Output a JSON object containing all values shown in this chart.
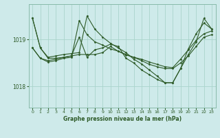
{
  "title": "Graphe pression niveau de la mer (hPa)",
  "bg_color": "#ceeaea",
  "grid_color": "#aad4cc",
  "line_color": "#2d5a27",
  "yticks": [
    1018,
    1019
  ],
  "ylim": [
    1017.55,
    1019.75
  ],
  "xlim": [
    -0.5,
    23.5
  ],
  "xticks": [
    0,
    1,
    2,
    3,
    4,
    5,
    6,
    7,
    8,
    9,
    10,
    11,
    12,
    13,
    14,
    15,
    16,
    17,
    18,
    19,
    20,
    21,
    22,
    23
  ],
  "series": [
    [
      1019.45,
      1018.82,
      1018.62,
      1018.65,
      1018.68,
      1018.7,
      1018.72,
      1019.5,
      1019.22,
      1019.05,
      1018.92,
      1018.82,
      1018.72,
      1018.58,
      1018.48,
      1018.35,
      1018.22,
      1018.08,
      1018.08,
      1018.38,
      1018.68,
      1018.95,
      1019.45,
      1019.22
    ],
    [
      1019.45,
      1018.82,
      1018.6,
      1018.6,
      1018.62,
      1018.65,
      1019.05,
      1018.62,
      1018.78,
      1018.82,
      1018.9,
      1018.85,
      1018.6,
      1018.5,
      1018.35,
      1018.25,
      1018.15,
      1018.08,
      1018.08,
      1018.38,
      1018.8,
      1019.12,
      1019.35,
      1019.22
    ],
    [
      1018.82,
      1018.6,
      1018.55,
      1018.58,
      1018.62,
      1018.65,
      1018.68,
      1018.68,
      1018.68,
      1018.72,
      1018.85,
      1018.75,
      1018.67,
      1018.62,
      1018.55,
      1018.47,
      1018.42,
      1018.38,
      1018.38,
      1018.5,
      1018.65,
      1018.85,
      1019.05,
      1019.1
    ],
    [
      1018.82,
      1018.6,
      1018.52,
      1018.55,
      1018.6,
      1018.62,
      1019.4,
      1019.1,
      1018.95,
      1018.88,
      1018.8,
      1018.75,
      1018.68,
      1018.62,
      1018.58,
      1018.52,
      1018.47,
      1018.42,
      1018.4,
      1018.58,
      1018.78,
      1018.98,
      1019.12,
      1019.18
    ]
  ]
}
